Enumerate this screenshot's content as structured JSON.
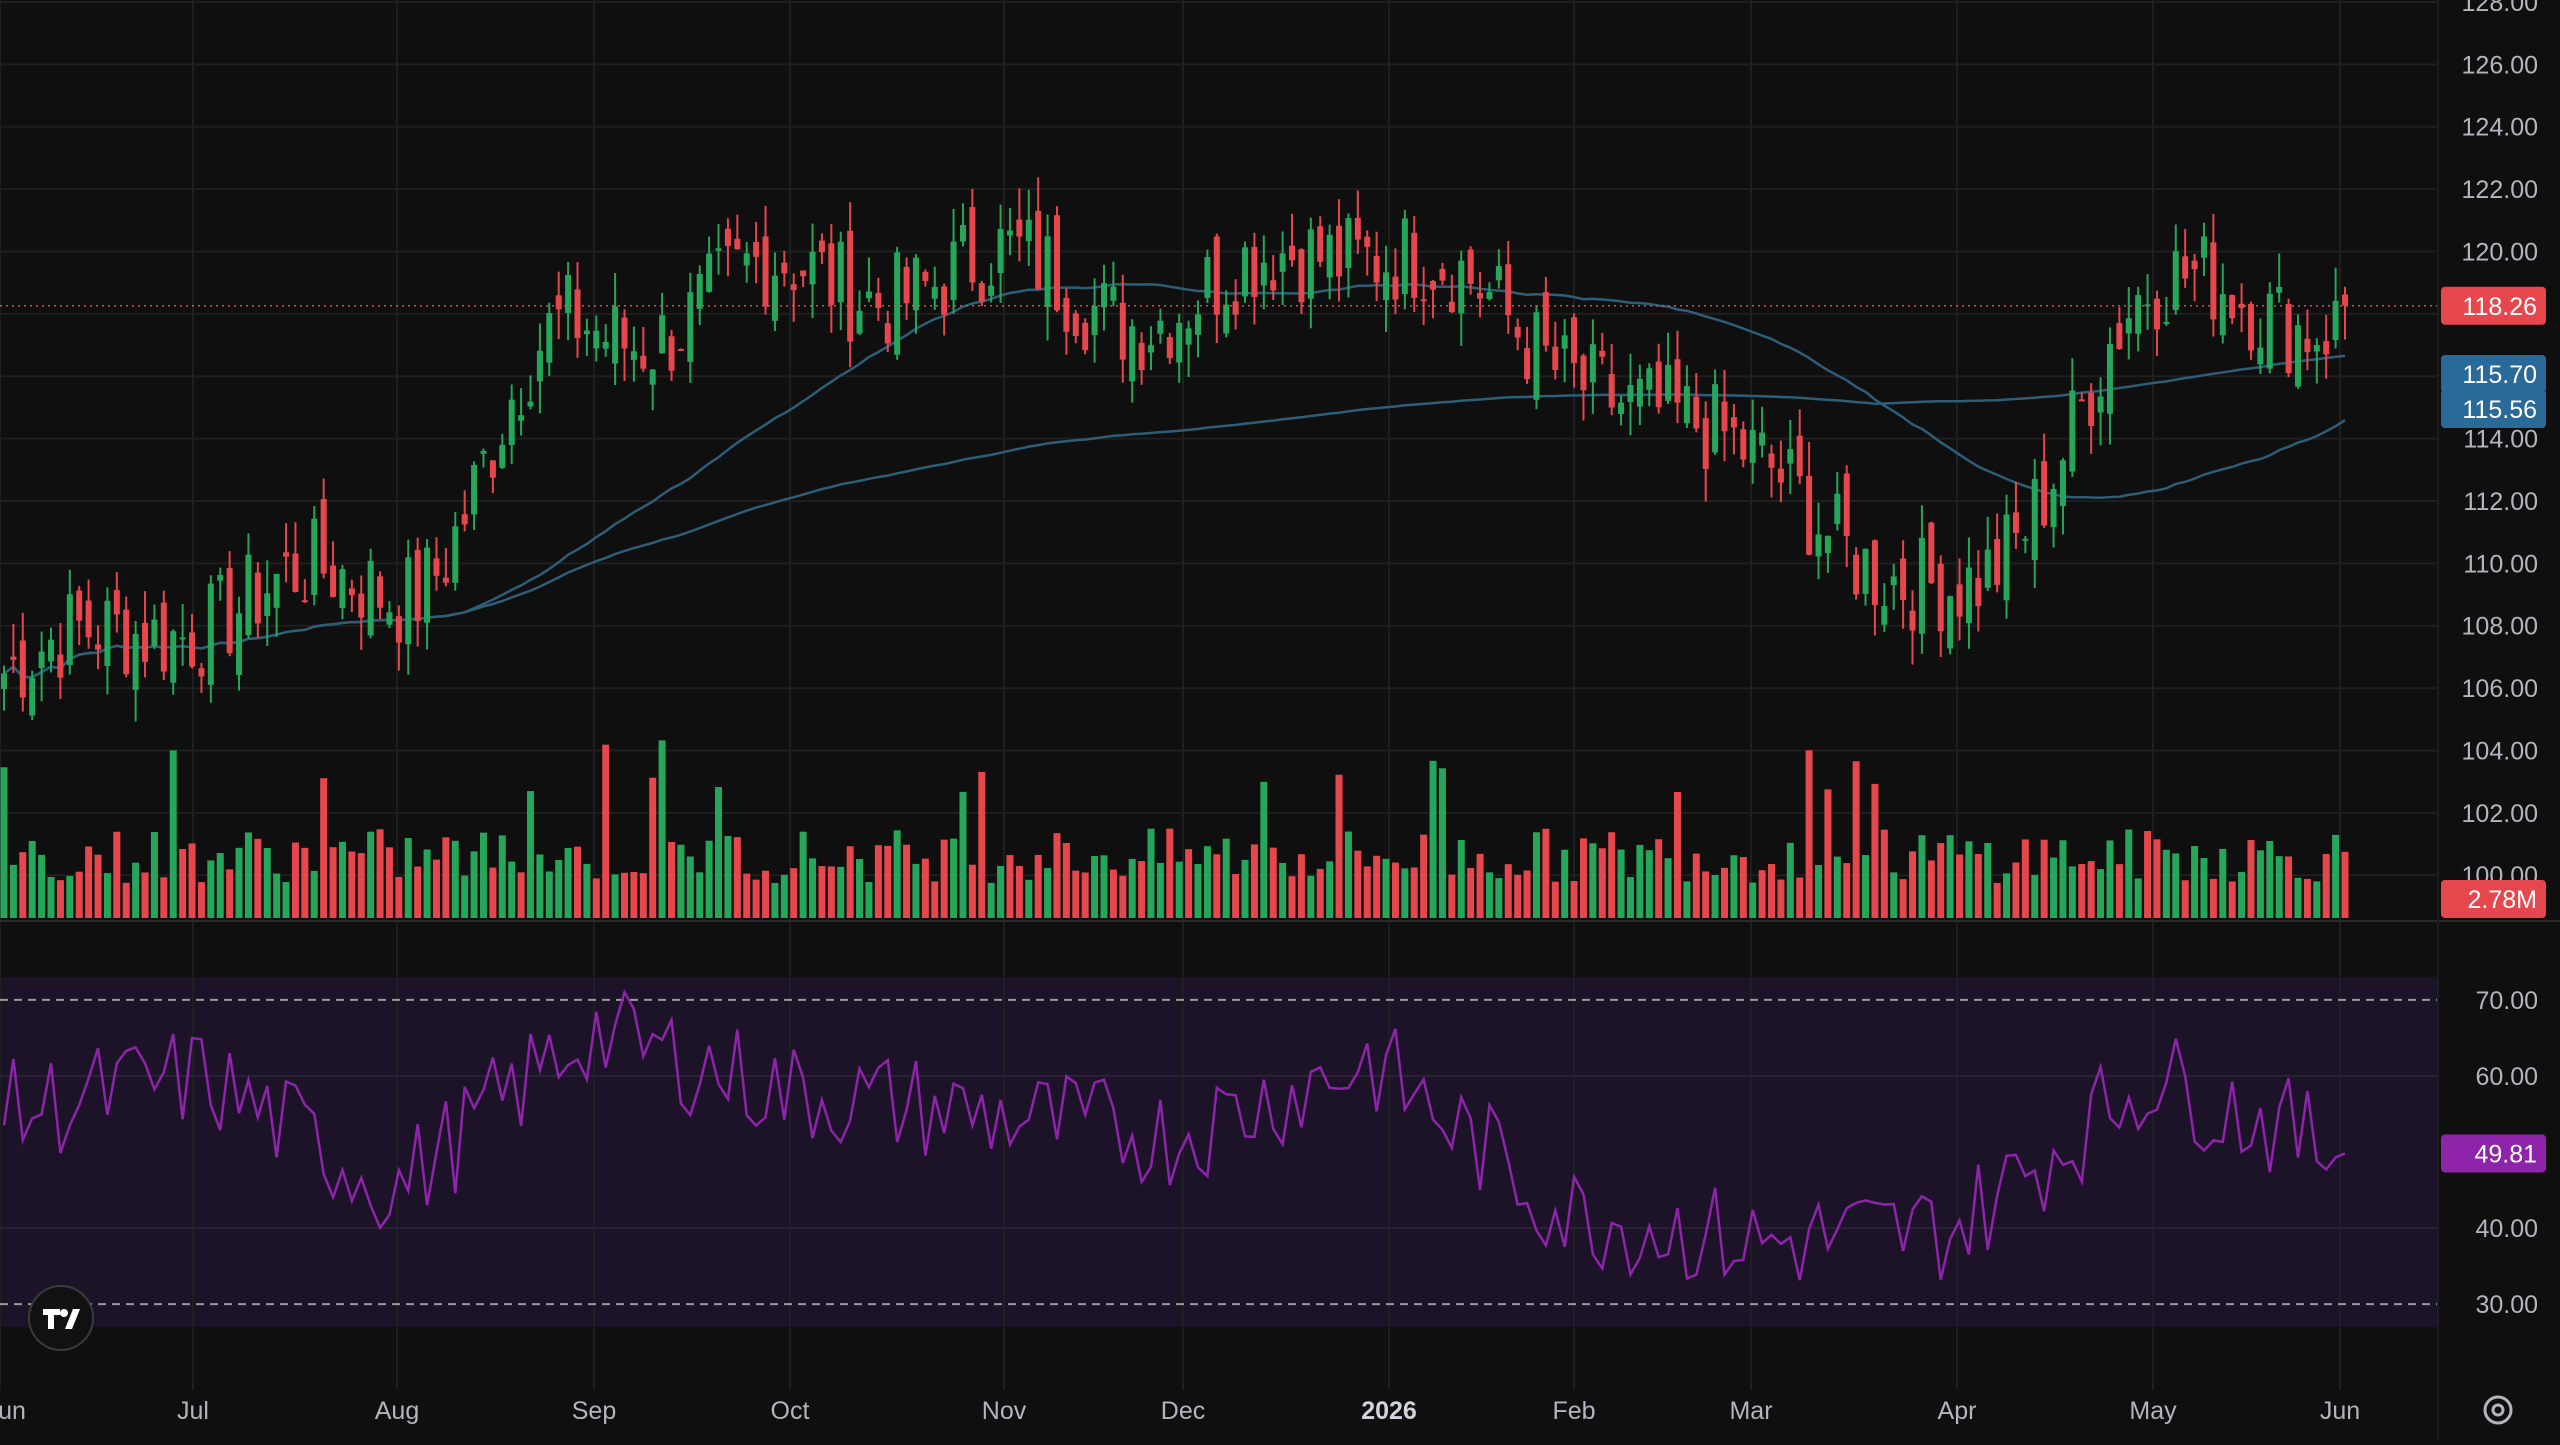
{
  "colors": {
    "background": "#0f0f0f",
    "grid": "#1f1f1f",
    "up": "#26a65b",
    "down": "#e5474d",
    "ma": "#2e5d78",
    "rsi_line": "#8e24aa",
    "rsi_band": "#1d1329",
    "axis_text": "#b2b5be",
    "price_badge": "#e5474d",
    "ma_badge": "#2a6a99",
    "rsi_badge": "#8e24aa"
  },
  "chart_data": [
    {
      "type": "candlestick",
      "panel": "price",
      "y_axis_ticks": [
        "128.00",
        "126.00",
        "124.00",
        "122.00",
        "120.00",
        "118.00",
        "116.00",
        "114.00",
        "112.00",
        "110.00",
        "108.00",
        "106.00",
        "104.00",
        "102.00",
        "100.00"
      ],
      "x_axis_labels": [
        "un",
        "Jul",
        "Aug",
        "Sep",
        "Oct",
        "Nov",
        "Dec",
        "2026",
        "Feb",
        "Mar",
        "Apr",
        "May",
        "Jun"
      ],
      "ylim": [
        98.5,
        128
      ],
      "last_price": 118.26,
      "last_price_label": "118.26",
      "ma_labels": [
        "115.70",
        "115.56"
      ],
      "approx_closes": [
        {
          "month": "Jun",
          "close": 106.5
        },
        {
          "month": "Jul",
          "close": 108.5
        },
        {
          "month": "Aug",
          "close": 109.5
        },
        {
          "month": "Sep",
          "close": 117.5
        },
        {
          "month": "Oct",
          "close": 119.0
        },
        {
          "month": "Nov",
          "close": 119.3
        },
        {
          "month": "Dec",
          "close": 118.3
        },
        {
          "month": "Jan",
          "close": 120.5
        },
        {
          "month": "Feb",
          "close": 116.5
        },
        {
          "month": "Mar",
          "close": 113.0
        },
        {
          "month": "Apr",
          "close": 108.5
        },
        {
          "month": "May",
          "close": 118.5
        },
        {
          "month": "Jun",
          "close": 118.26
        }
      ]
    },
    {
      "type": "bar",
      "panel": "volume",
      "last_volume_label": "2.78M"
    },
    {
      "type": "line",
      "panel": "rsi",
      "y_axis_ticks": [
        "70.00",
        "60.00",
        "40.00",
        "30.00"
      ],
      "band": [
        30,
        70
      ],
      "ylim": [
        27,
        73
      ],
      "last_value": 49.81,
      "last_value_label": "49.81",
      "approx_values": [
        {
          "month": "Jun",
          "value": 55
        },
        {
          "month": "Jul",
          "value": 60
        },
        {
          "month": "Aug",
          "value": 45
        },
        {
          "month": "Sep",
          "value": 66
        },
        {
          "month": "Oct",
          "value": 58
        },
        {
          "month": "Nov",
          "value": 55
        },
        {
          "month": "Dec",
          "value": 52
        },
        {
          "month": "Jan",
          "value": 62
        },
        {
          "month": "Feb",
          "value": 42
        },
        {
          "month": "Mar",
          "value": 38
        },
        {
          "month": "Apr",
          "value": 40
        },
        {
          "month": "May",
          "value": 60
        },
        {
          "month": "Jun",
          "value": 49.81
        }
      ]
    }
  ],
  "icons": {
    "logo": "tradingview-logo-icon",
    "settings": "gear-icon"
  }
}
